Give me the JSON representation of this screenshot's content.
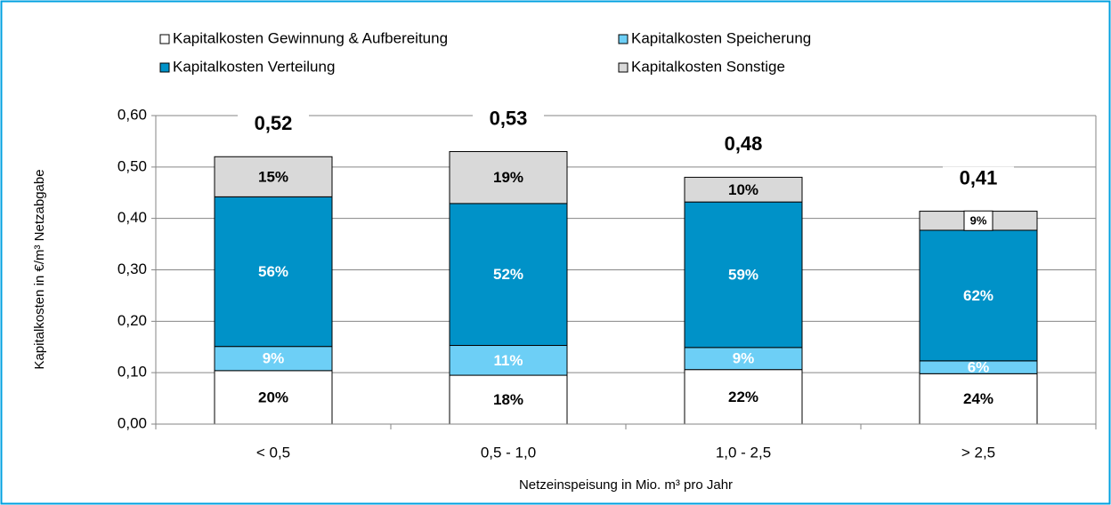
{
  "chart_data": {
    "type": "stacked_bar",
    "categories": [
      "< 0,5",
      "0,5 - 1,0",
      "1,0 - 2,5",
      "> 2,5"
    ],
    "series": [
      {
        "name": "Kapitalkosten Gewinnung & Aufbereitung",
        "color": "#ffffff",
        "label_color": "#000000",
        "values": [
          0.104,
          0.095,
          0.106,
          0.098
        ],
        "share_labels": [
          "20%",
          "18%",
          "22%",
          "24%"
        ]
      },
      {
        "name": "Kapitalkosten Speicherung",
        "color": "#6dcff6",
        "label_color": "#ffffff",
        "values": [
          0.047,
          0.058,
          0.043,
          0.025
        ],
        "share_labels": [
          "9%",
          "11%",
          "9%",
          "6%"
        ]
      },
      {
        "name": "Kapitalkosten Verteilung",
        "color": "#0092c8",
        "label_color": "#ffffff",
        "values": [
          0.291,
          0.276,
          0.283,
          0.254
        ],
        "share_labels": [
          "56%",
          "52%",
          "59%",
          "62%"
        ]
      },
      {
        "name": "Kapitalkosten Sonstige",
        "color": "#d9d9d9",
        "label_color": "#000000",
        "values": [
          0.078,
          0.101,
          0.048,
          0.037
        ],
        "share_labels": [
          "15%",
          "19%",
          "10%",
          "9%"
        ]
      }
    ],
    "totals": [
      0.52,
      0.53,
      0.48,
      0.41
    ],
    "total_labels": [
      "0,52",
      "0,53",
      "0,48",
      "0,41"
    ],
    "ylim": [
      0,
      0.6
    ],
    "yticks": [
      {
        "value": 0,
        "label": "0,00"
      },
      {
        "value": 0.1,
        "label": "0,10"
      },
      {
        "value": 0.2,
        "label": "0,20"
      },
      {
        "value": 0.3,
        "label": "0,30"
      },
      {
        "value": 0.4,
        "label": "0,40"
      },
      {
        "value": 0.5,
        "label": "0,50"
      },
      {
        "value": 0.6,
        "label": "0,60"
      }
    ],
    "y_label": "Kapitalkosten in €/m³ Netzabgabe",
    "x_label": "Netzeinspeisung in Mio. m³ pro Jahr",
    "grid": true
  }
}
